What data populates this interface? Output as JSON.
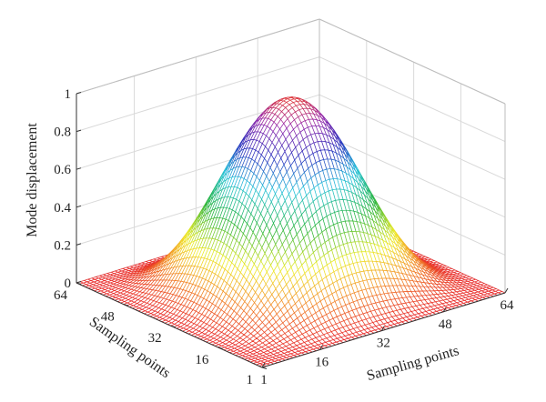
{
  "chart_data": {
    "type": "surface",
    "zlabel": "Mode displacement",
    "xlabel": "Sampling points",
    "ylabel": "Sampling points",
    "x_ticks": [
      "1",
      "16",
      "32",
      "48",
      "64"
    ],
    "y_ticks": [
      "1",
      "16",
      "32",
      "48",
      "64"
    ],
    "z_ticks": [
      "0",
      "0.2",
      "0.4",
      "0.6",
      "0.8",
      "1"
    ],
    "xlim": [
      1,
      64
    ],
    "ylim": [
      1,
      64
    ],
    "zlim": [
      0,
      1
    ],
    "grid": true,
    "mesh": "wireframe",
    "colormap": "jet",
    "surface": {
      "grid_points": 64,
      "peak_value": 1.0,
      "peak_at": [
        32,
        32
      ],
      "boundary_value": 0.0,
      "shape": "sin(pi*(x-1)/63)^2 * sin(pi*(y-1)/63)^2"
    }
  }
}
